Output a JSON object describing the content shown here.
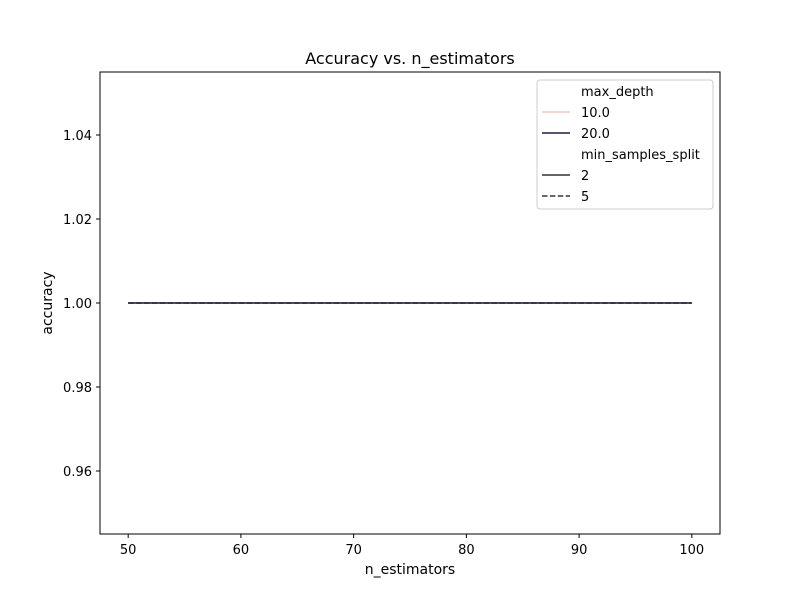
{
  "chart_data": {
    "type": "line",
    "title": "Accuracy vs. n_estimators",
    "xlabel": "n_estimators",
    "ylabel": "accuracy",
    "xlim": [
      47.5,
      102.5
    ],
    "ylim": [
      0.945,
      1.055
    ],
    "xticks": [
      50,
      60,
      70,
      80,
      90,
      100
    ],
    "xtick_labels": [
      "50",
      "60",
      "70",
      "80",
      "90",
      "100"
    ],
    "yticks": [
      0.96,
      0.98,
      1.0,
      1.02,
      1.04
    ],
    "ytick_labels": [
      "0.96",
      "0.98",
      "1.00",
      "1.02",
      "1.04"
    ],
    "grid": false,
    "legend": {
      "placement": "top-right",
      "hue_title": "max_depth",
      "hue_entries": [
        {
          "label": "10.0",
          "color": "#f0c8c0",
          "dash": "solid"
        },
        {
          "label": "20.0",
          "color": "#1f1d3f",
          "dash": "solid"
        }
      ],
      "style_title": "min_samples_split",
      "style_entries": [
        {
          "label": "2",
          "color": "#333333",
          "dash": "solid"
        },
        {
          "label": "5",
          "color": "#333333",
          "dash": "dashed"
        }
      ]
    },
    "series": [
      {
        "max_depth": "10.0",
        "min_samples_split": "2",
        "color": "#f0c8c0",
        "dash": "solid",
        "x": [
          50,
          100
        ],
        "y": [
          1.0,
          1.0
        ]
      },
      {
        "max_depth": "10.0",
        "min_samples_split": "5",
        "color": "#f0c8c0",
        "dash": "dashed",
        "x": [
          50,
          100
        ],
        "y": [
          1.0,
          1.0
        ]
      },
      {
        "max_depth": "20.0",
        "min_samples_split": "5",
        "color": "#1f1d3f",
        "dash": "dashed",
        "x": [
          50,
          100
        ],
        "y": [
          1.0,
          1.0
        ]
      },
      {
        "max_depth": "20.0",
        "min_samples_split": "2",
        "color": "#1f1d3f",
        "dash": "solid",
        "x": [
          50,
          100
        ],
        "y": [
          1.0,
          1.0
        ]
      }
    ]
  }
}
